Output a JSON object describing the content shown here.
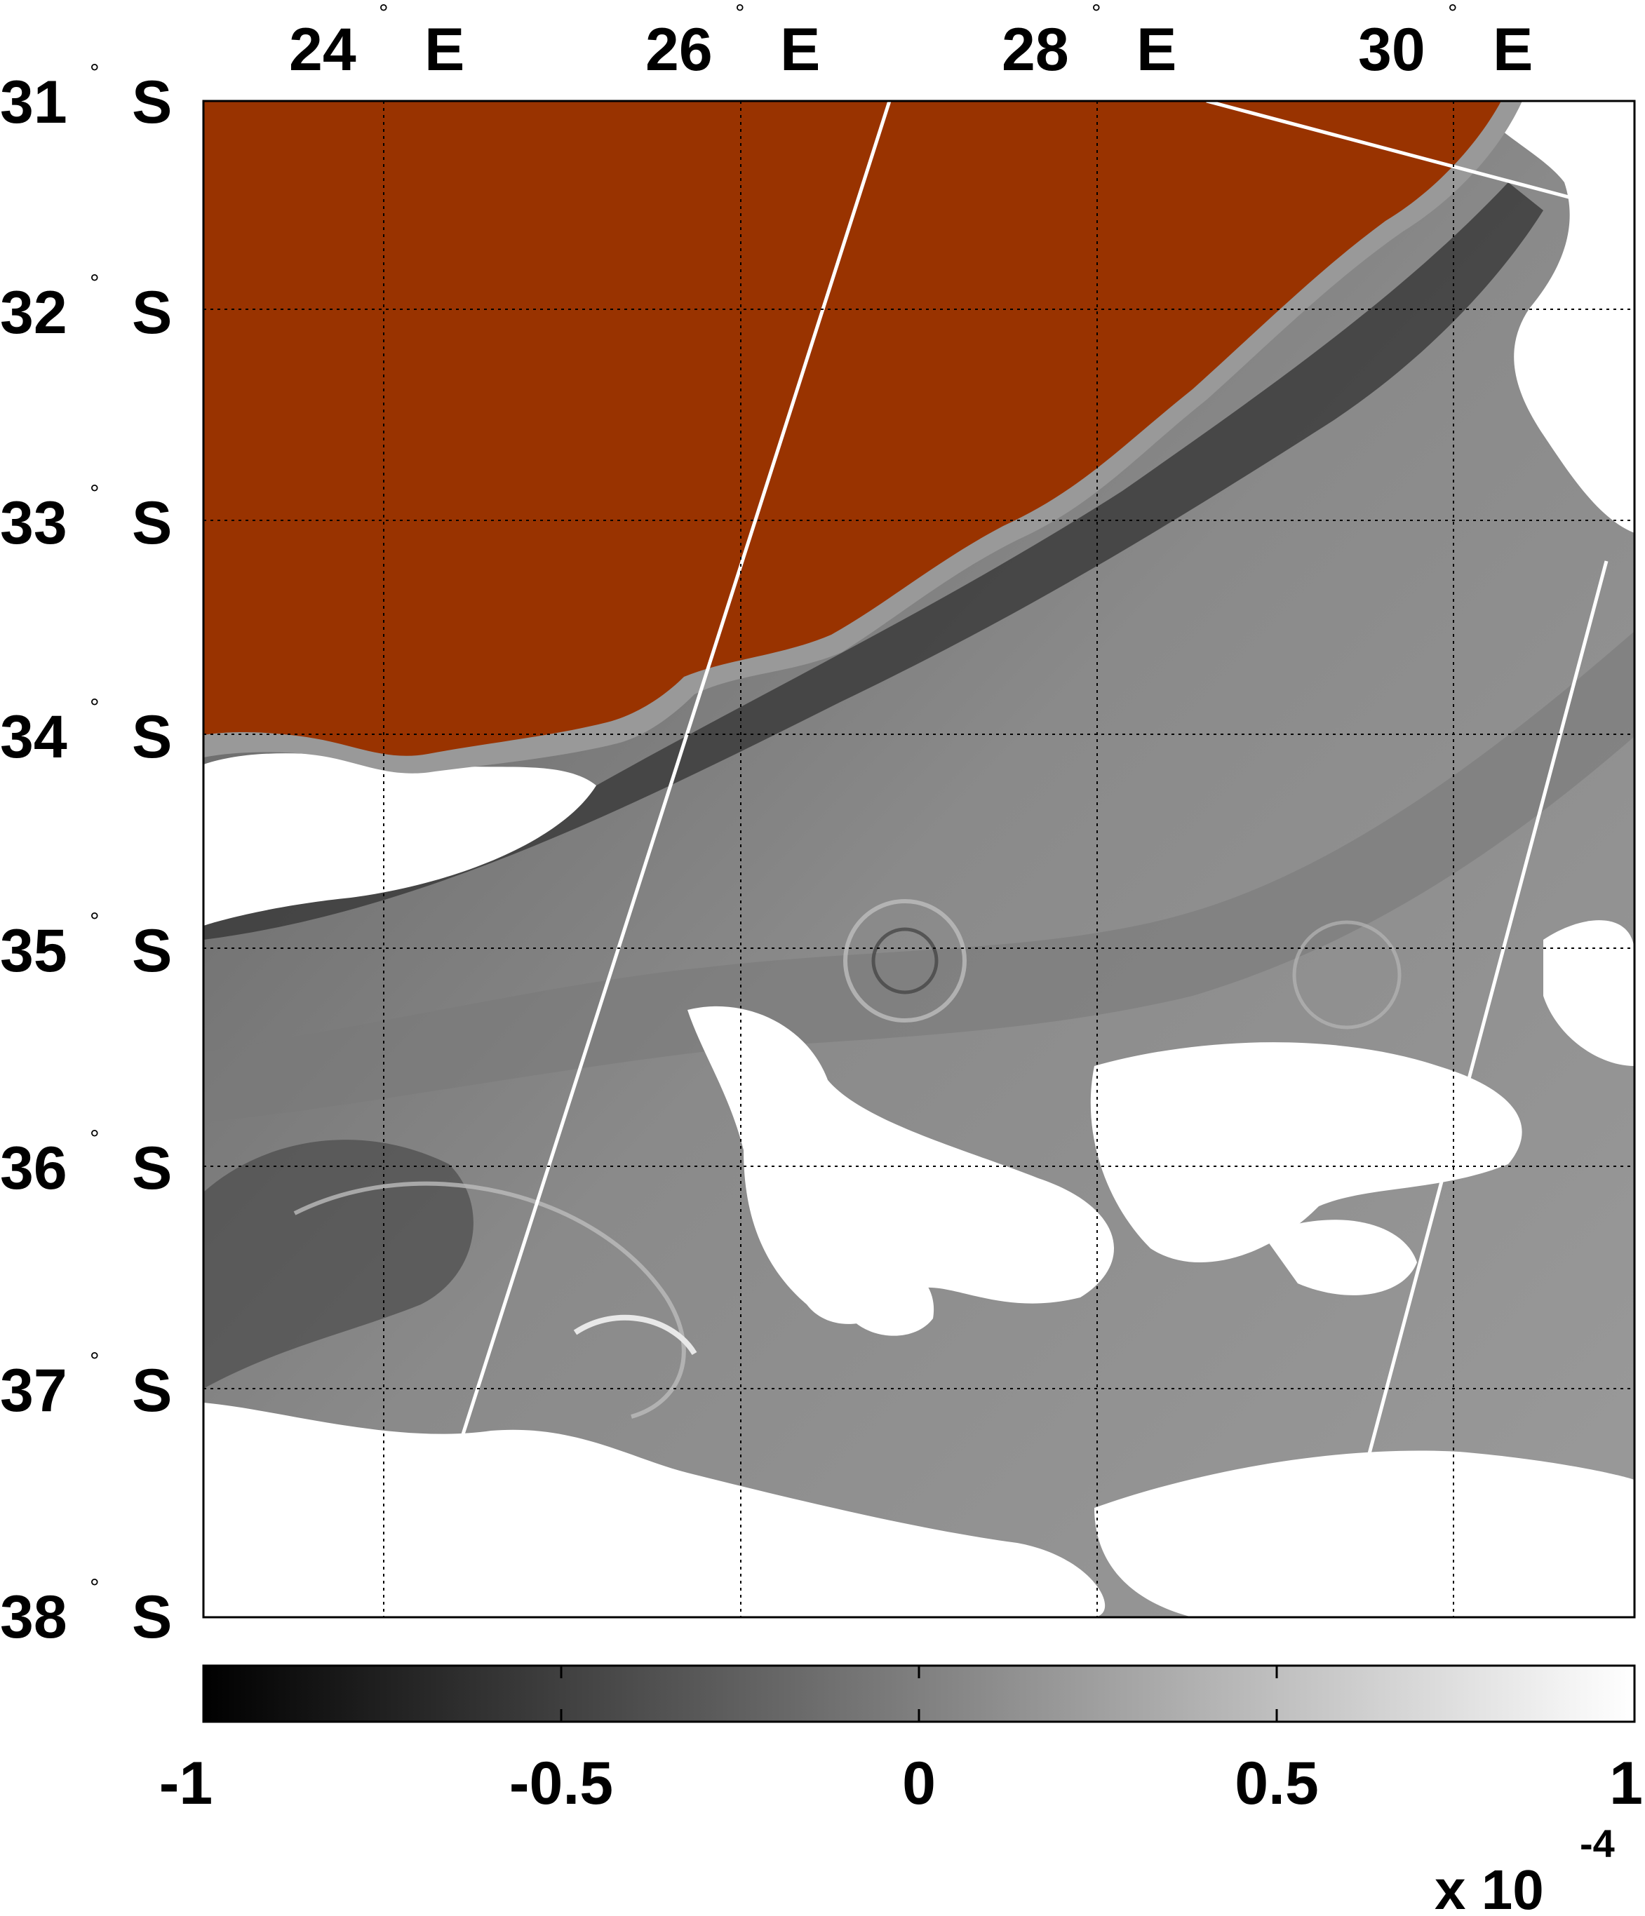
{
  "map": {
    "lon_labels": [
      {
        "deg": "24",
        "dir": "E"
      },
      {
        "deg": "26",
        "dir": "E"
      },
      {
        "deg": "28",
        "dir": "E"
      },
      {
        "deg": "30",
        "dir": "E"
      }
    ],
    "lat_labels": [
      {
        "deg": "31",
        "dir": "S"
      },
      {
        "deg": "32",
        "dir": "S"
      },
      {
        "deg": "33",
        "dir": "S"
      },
      {
        "deg": "34",
        "dir": "S"
      },
      {
        "deg": "35",
        "dir": "S"
      },
      {
        "deg": "36",
        "dir": "S"
      },
      {
        "deg": "37",
        "dir": "S"
      },
      {
        "deg": "38",
        "dir": "S"
      }
    ],
    "degree_symbol": "°",
    "land_color": "#993300",
    "coast_color": "#999999",
    "cloud_mask_color": "#ffffff",
    "track_line_color": "#ffffff",
    "grid": "dotted"
  },
  "colorbar": {
    "colormap": "gray (black to white)",
    "ticks": [
      "-1",
      "-0.5",
      "0",
      "0.5",
      "1"
    ],
    "min": -1,
    "max": 1,
    "scale_label": "x 10",
    "scale_exponent": "-4"
  }
}
